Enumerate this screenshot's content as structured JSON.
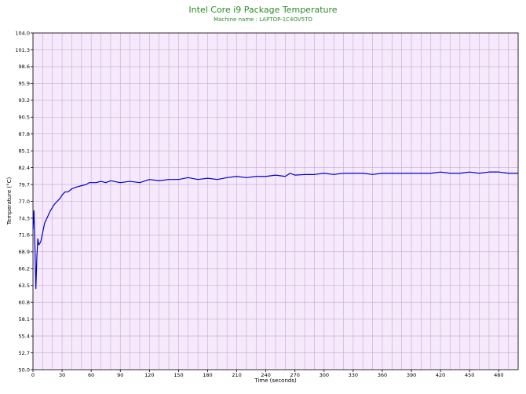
{
  "chart_data": {
    "type": "line",
    "title": "Intel Core i9 Package Temperature",
    "subtitle": "Machine name : LAPTOP-1C4OV5TO",
    "xlabel": "Time (seconds)",
    "ylabel": "Temperature (°C)",
    "xlim": [
      0,
      500
    ],
    "ylim": [
      50.0,
      104.0
    ],
    "x_ticks": [
      0,
      30,
      60,
      90,
      120,
      150,
      180,
      210,
      240,
      270,
      300,
      330,
      360,
      390,
      420,
      450,
      480
    ],
    "y_ticks": [
      "50.0",
      "52.7",
      "55.4",
      "58.1",
      "60.8",
      "63.5",
      "66.2",
      "68.9",
      "71.6",
      "74.3",
      "77.0",
      "79.7",
      "82.4",
      "85.1",
      "87.8",
      "90.5",
      "93.2",
      "95.9",
      "98.6",
      "101.3",
      "104.0"
    ],
    "grid": true,
    "colors": {
      "title": "#2a8a2a",
      "subtitle": "#2a8a2a",
      "line": "#0000cc",
      "plot_background": "#f6e9fb",
      "grid": "#c8a8d2",
      "axis": "#000000"
    },
    "series": [
      {
        "name": "",
        "x": [
          0,
          1,
          2,
          3,
          4,
          5,
          6,
          8,
          10,
          12,
          15,
          18,
          20,
          22,
          25,
          28,
          30,
          33,
          36,
          40,
          45,
          50,
          55,
          58,
          60,
          65,
          70,
          75,
          80,
          90,
          100,
          110,
          120,
          130,
          140,
          150,
          160,
          170,
          180,
          190,
          200,
          210,
          220,
          230,
          240,
          250,
          260,
          265,
          270,
          280,
          290,
          300,
          310,
          320,
          330,
          340,
          350,
          360,
          370,
          380,
          390,
          400,
          410,
          420,
          430,
          440,
          450,
          460,
          470,
          480,
          490,
          500
        ],
        "y": [
          72.5,
          75.5,
          70.0,
          63.0,
          68.0,
          71.0,
          70.0,
          70.5,
          72.0,
          73.5,
          74.5,
          75.5,
          76.0,
          76.5,
          77.0,
          77.5,
          78.0,
          78.5,
          78.5,
          79.0,
          79.3,
          79.5,
          79.7,
          80.0,
          80.0,
          80.0,
          80.2,
          80.0,
          80.3,
          80.0,
          80.2,
          80.0,
          80.5,
          80.3,
          80.5,
          80.5,
          80.8,
          80.5,
          80.7,
          80.5,
          80.8,
          81.0,
          80.8,
          81.0,
          81.0,
          81.2,
          81.0,
          81.5,
          81.2,
          81.3,
          81.3,
          81.5,
          81.3,
          81.5,
          81.5,
          81.5,
          81.3,
          81.5,
          81.5,
          81.5,
          81.5,
          81.5,
          81.5,
          81.7,
          81.5,
          81.5,
          81.7,
          81.5,
          81.7,
          81.7,
          81.5,
          81.5
        ]
      }
    ]
  }
}
